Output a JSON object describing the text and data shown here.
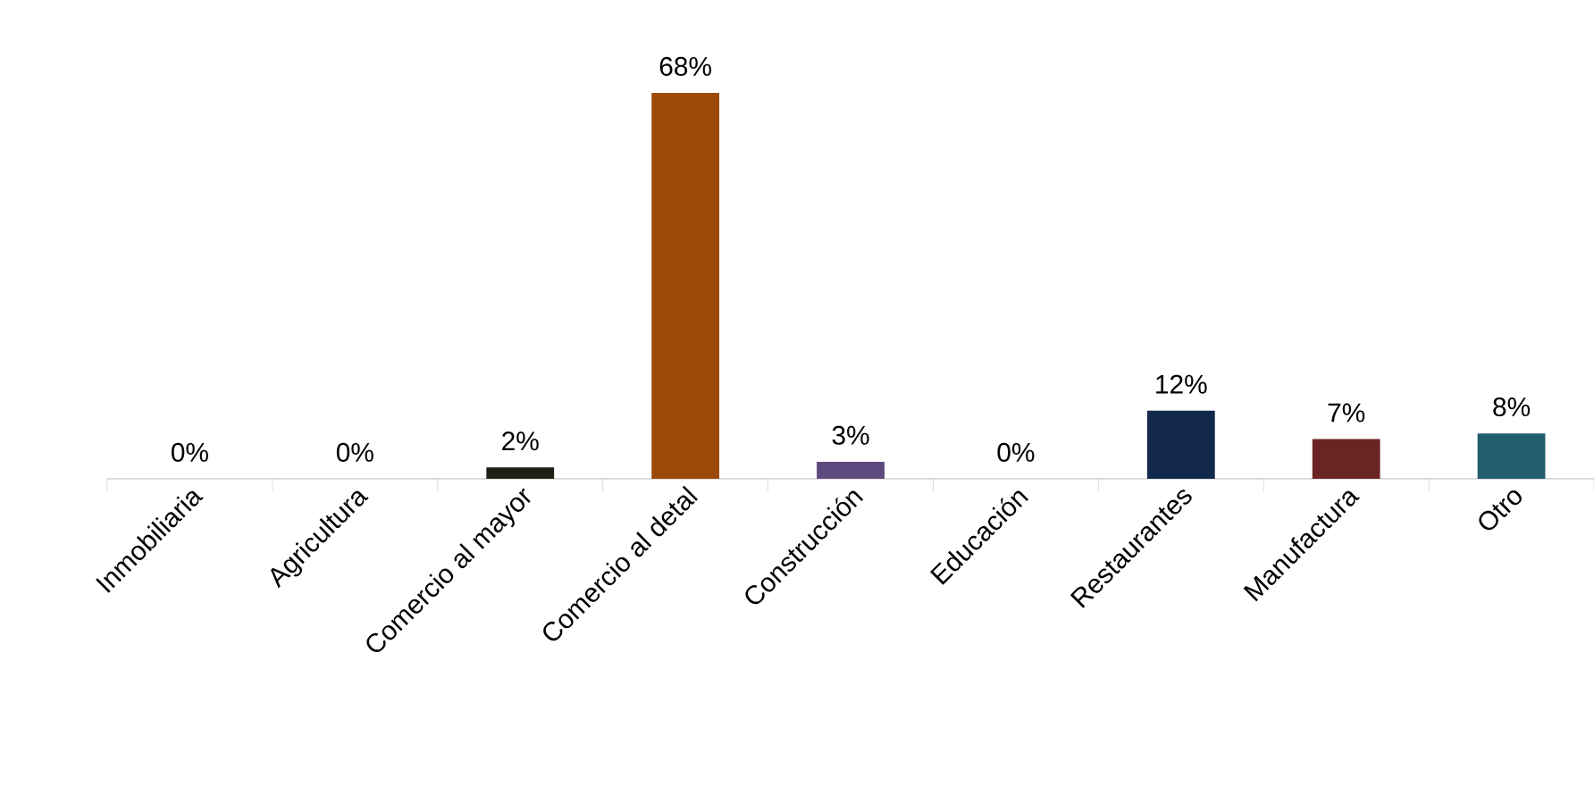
{
  "chart_data": {
    "type": "bar",
    "categories": [
      "Inmobiliaria",
      "Agricultura",
      "Comercio al mayor",
      "Comercio al detal",
      "Construcción",
      "Educación",
      "Restaurantes",
      "Manufactura",
      "Otro"
    ],
    "values": [
      0,
      0,
      2,
      68,
      3,
      0,
      12,
      7,
      8
    ],
    "colors": [
      "#4f81bd",
      "#4f81bd",
      "#1f1f14",
      "#9c4a0a",
      "#5e4a7e",
      "#4f81bd",
      "#13294b",
      "#6b2424",
      "#215e6e"
    ],
    "value_labels": [
      "0%",
      "0%",
      "2%",
      "68%",
      "3%",
      "0%",
      "12%",
      "7%",
      "8%"
    ]
  }
}
